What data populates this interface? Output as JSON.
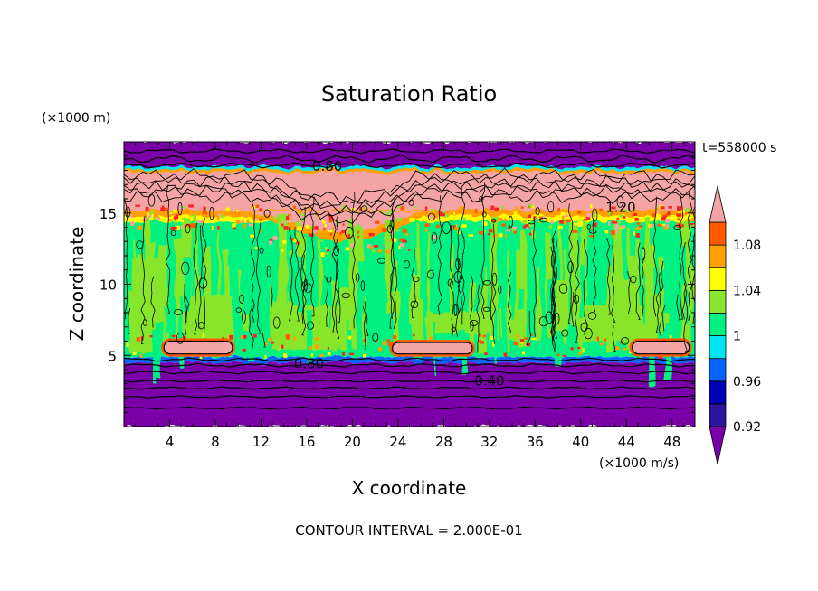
{
  "chart_data": {
    "type": "heatmap",
    "title": "Saturation Ratio",
    "xlabel": "X coordinate",
    "ylabel": "Z coordinate",
    "x_unit_label": "(×1000 m/s)",
    "y_unit_label": "(×1000 m)",
    "time_label": "t=558000 s",
    "footer": "CONTOUR INTERVAL = 2.000E-01",
    "xlim": [
      0,
      50
    ],
    "ylim": [
      0,
      20
    ],
    "x_ticks": [
      4,
      8,
      12,
      16,
      20,
      24,
      28,
      32,
      36,
      40,
      44,
      48
    ],
    "y_ticks": [
      5,
      10,
      15
    ],
    "colorbar": {
      "levels": [
        0.92,
        0.94,
        0.96,
        0.98,
        1.0,
        1.02,
        1.04,
        1.06,
        1.08,
        1.1
      ],
      "labels": [
        "0.92",
        "0.96",
        "1",
        "1.04",
        "1.08"
      ],
      "label_values": [
        0.92,
        0.96,
        1.0,
        1.04,
        1.08
      ],
      "colors": [
        "#7a00a8",
        "#2c149e",
        "#0000b4",
        "#0a64ff",
        "#00e6f0",
        "#00f082",
        "#88e62c",
        "#ffff00",
        "#ffa000",
        "#ff5a00",
        "#ff2020",
        "#f4a4a4"
      ]
    },
    "contour_labels": [
      {
        "x": 17.8,
        "z": 18.3,
        "text": "0.80"
      },
      {
        "x": 43.5,
        "z": 15.4,
        "text": "1.20"
      },
      {
        "x": 16.2,
        "z": 4.4,
        "text": "0.80"
      },
      {
        "x": 32.0,
        "z": 3.2,
        "text": "0.40"
      }
    ],
    "bands": [
      {
        "z0": 0.0,
        "z1": 4.5,
        "value": "<0.92"
      },
      {
        "z0": 4.5,
        "z1": 4.9,
        "value": "0.96"
      },
      {
        "z0": 4.9,
        "z1": 15.0,
        "value": "0.98-1.02"
      },
      {
        "z0": 15.0,
        "z1": 18.0,
        "value": ">1.10"
      },
      {
        "z0": 18.0,
        "z1": 20.0,
        "value": "<0.92"
      }
    ],
    "features": [
      {
        "x0": 3.5,
        "x1": 9.5,
        "z0": 5.1,
        "z1": 6.0,
        "value": ">1.10"
      },
      {
        "x0": 23.5,
        "x1": 30.5,
        "z0": 5.1,
        "z1": 5.9,
        "value": ">1.10"
      },
      {
        "x0": 44.5,
        "x1": 49.5,
        "z0": 5.1,
        "z1": 6.0,
        "value": ">1.10"
      }
    ]
  }
}
